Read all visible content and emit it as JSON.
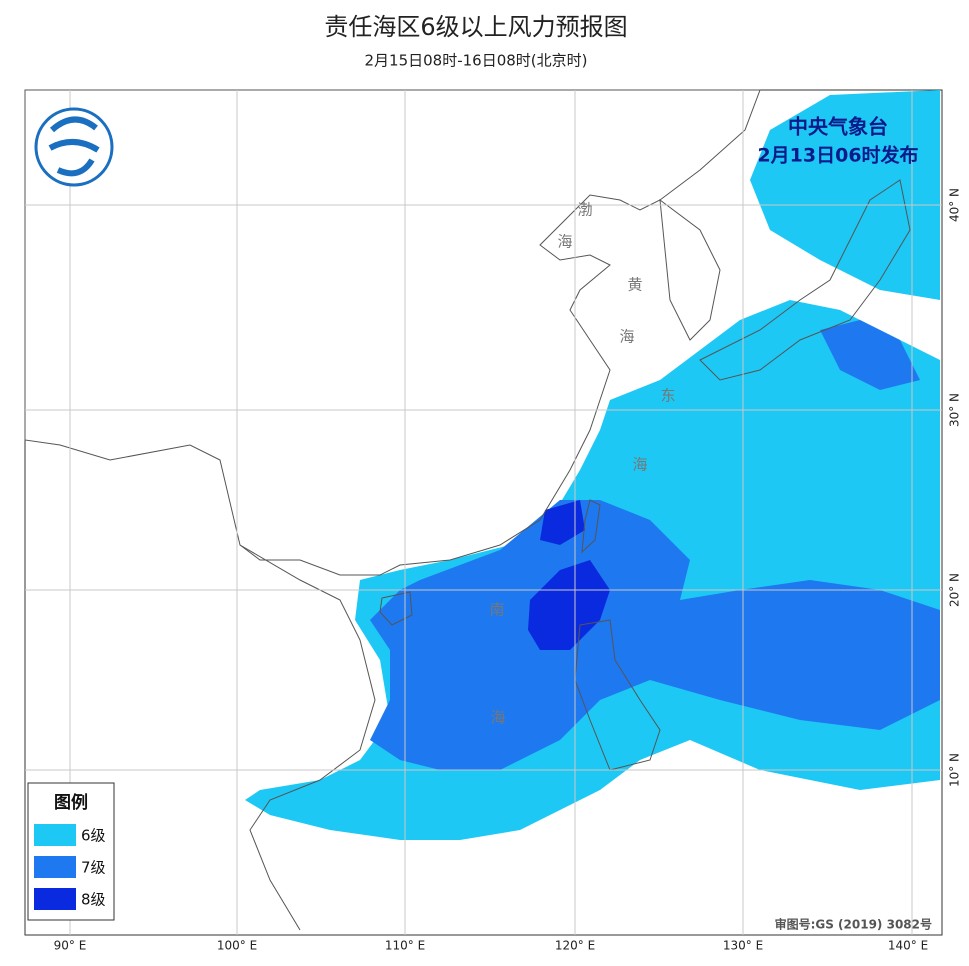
{
  "header": {
    "title": "责任海区6级以上风力预报图",
    "subtitle": "2月15日08时-16日08时(北京时)"
  },
  "issuer": {
    "name": "中央气象台",
    "issued": "2月13日06时发布"
  },
  "legend": {
    "title": "图例",
    "items": [
      "6级",
      "7级",
      "8级"
    ]
  },
  "sea_labels": [
    "渤",
    "海",
    "黄",
    "海",
    "东",
    "海",
    "南",
    "海"
  ],
  "longitude_labels": [
    "90° E",
    "100° E",
    "110° E",
    "120° E",
    "130° E",
    "140° E"
  ],
  "latitude_labels": [
    "40° N",
    "30° N",
    "20° N",
    "10° N"
  ],
  "footer": {
    "approval": "审图号:GS (2019) 3082号"
  }
}
